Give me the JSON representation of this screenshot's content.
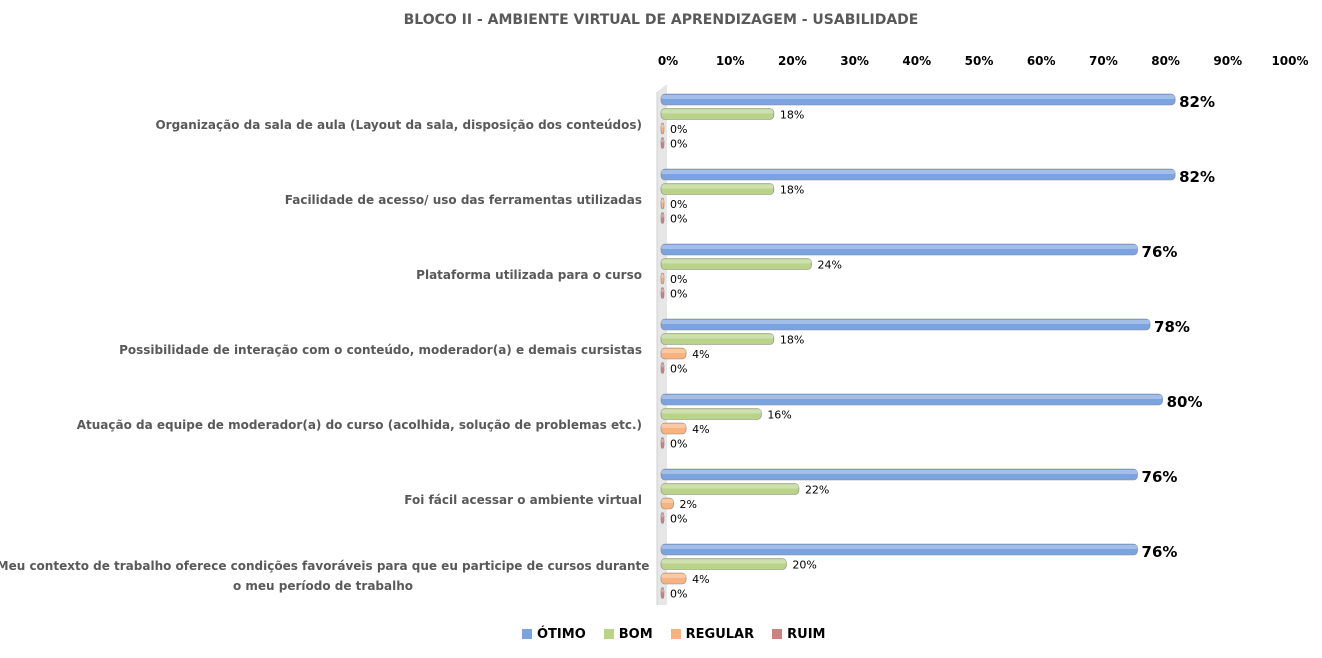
{
  "chart_data": {
    "type": "bar",
    "orientation": "horizontal",
    "title": "BLOCO II - AMBIENTE VIRTUAL DE APRENDIZAGEM - USABILIDADE",
    "xlim": [
      0,
      100
    ],
    "x_ticks": [
      "0%",
      "10%",
      "20%",
      "30%",
      "40%",
      "50%",
      "60%",
      "70%",
      "80%",
      "90%",
      "100%"
    ],
    "categories": [
      [
        "Organização da sala de aula (Layout da sala, disposição dos conteúdos)"
      ],
      [
        "Facilidade de acesso/ uso das ferramentas utilizadas"
      ],
      [
        "Plataforma utilizada para o curso"
      ],
      [
        "Possibilidade de interação com o conteúdo, moderador(a) e demais cursistas"
      ],
      [
        "Atuação da equipe de moderador(a) do curso (acolhida, solução de problemas etc.)"
      ],
      [
        "Foi fácil acessar o ambiente virtual"
      ],
      [
        "Meu contexto de trabalho oferece condições favoráveis para que eu participe de cursos durante",
        "o meu período de trabalho"
      ]
    ],
    "series": [
      {
        "name": "ÓTIMO",
        "color": "#7ba3e0",
        "values": [
          82,
          82,
          76,
          78,
          80,
          76,
          76
        ]
      },
      {
        "name": "BOM",
        "color": "#b9d38a",
        "values": [
          18,
          18,
          24,
          18,
          16,
          22,
          20
        ]
      },
      {
        "name": "REGULAR",
        "color": "#f7b27f",
        "values": [
          0,
          0,
          0,
          4,
          4,
          2,
          4
        ]
      },
      {
        "name": "RUIM",
        "color": "#c98482",
        "values": [
          0,
          0,
          0,
          0,
          0,
          0,
          0
        ]
      }
    ],
    "legend_position": "bottom"
  }
}
